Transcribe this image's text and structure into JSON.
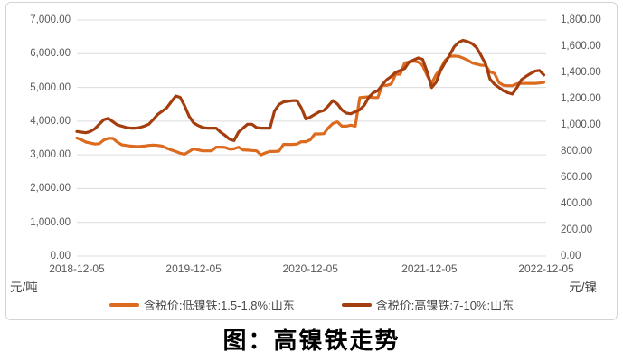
{
  "chart_data": {
    "type": "line",
    "title": "图：高镍铁走势",
    "grid": true,
    "legend_position": "bottom",
    "left_axis": {
      "unit": "元/吨",
      "min": 0,
      "max": 7000,
      "step": 1000,
      "tick_labels": [
        "7,000.00",
        "6,000.00",
        "5,000.00",
        "4,000.00",
        "3,000.00",
        "2,000.00",
        "1,000.00",
        "0.00"
      ]
    },
    "right_axis": {
      "unit": "元/镍",
      "min": 0,
      "max": 1800,
      "step": 200,
      "tick_labels": [
        "1,800.00",
        "1,600.00",
        "1,400.00",
        "1,200.00",
        "1,000.00",
        "800.00",
        "600.00",
        "400.00",
        "200.00",
        "0.00"
      ]
    },
    "x_axis": {
      "tick_labels": [
        "2018-12-05",
        "2019-12-05",
        "2020-12-05",
        "2021-12-05",
        "2022-12-05"
      ],
      "weeks_total": 209,
      "tick_weeks": [
        0,
        52,
        104,
        157,
        209
      ]
    },
    "series": [
      {
        "name": "含税价:低镍铁:1.5-1.8%:山东",
        "color": "#DC6B1F",
        "axis": "left",
        "week_start": 0,
        "week_step": 2,
        "values": [
          3500,
          3450,
          3380,
          3350,
          3320,
          3330,
          3440,
          3490,
          3490,
          3380,
          3300,
          3280,
          3260,
          3250,
          3250,
          3260,
          3280,
          3290,
          3280,
          3260,
          3200,
          3150,
          3100,
          3050,
          3020,
          3100,
          3180,
          3150,
          3120,
          3120,
          3120,
          3230,
          3230,
          3220,
          3170,
          3180,
          3230,
          3150,
          3140,
          3130,
          3120,
          3000,
          3060,
          3100,
          3100,
          3110,
          3310,
          3310,
          3310,
          3320,
          3390,
          3390,
          3450,
          3620,
          3620,
          3630,
          3800,
          3930,
          3980,
          3850,
          3850,
          3880,
          3850,
          4700,
          4710,
          4720,
          4700,
          4700,
          5060,
          5060,
          5100,
          5390,
          5390,
          5730,
          5750,
          5780,
          5750,
          5650,
          5350,
          5120,
          5380,
          5550,
          5800,
          5920,
          5930,
          5920,
          5870,
          5810,
          5730,
          5690,
          5660,
          5650,
          5460,
          5410,
          5140,
          5060,
          5050,
          5050,
          5110,
          5120,
          5120,
          5120,
          5120,
          5130,
          5150
        ]
      },
      {
        "name": "含税价:高镍铁:7-10%:山东",
        "color": "#A43E0E",
        "axis": "right",
        "week_start": 0,
        "week_step": 2,
        "values": [
          950,
          945,
          940,
          950,
          970,
          1005,
          1040,
          1050,
          1025,
          1000,
          990,
          980,
          975,
          975,
          980,
          990,
          1005,
          1040,
          1080,
          1105,
          1130,
          1175,
          1220,
          1210,
          1145,
          1065,
          1015,
          995,
          980,
          975,
          975,
          975,
          945,
          920,
          890,
          880,
          945,
          975,
          1005,
          1005,
          980,
          975,
          975,
          975,
          1105,
          1155,
          1175,
          1180,
          1185,
          1185,
          1130,
          1045,
          1060,
          1080,
          1100,
          1110,
          1145,
          1185,
          1160,
          1115,
          1090,
          1085,
          1100,
          1115,
          1150,
          1210,
          1245,
          1260,
          1305,
          1345,
          1370,
          1400,
          1415,
          1430,
          1480,
          1495,
          1510,
          1500,
          1405,
          1285,
          1325,
          1415,
          1475,
          1530,
          1595,
          1630,
          1645,
          1635,
          1620,
          1590,
          1530,
          1465,
          1350,
          1310,
          1285,
          1260,
          1245,
          1235,
          1285,
          1345,
          1370,
          1390,
          1410,
          1415,
          1380
        ]
      }
    ]
  }
}
